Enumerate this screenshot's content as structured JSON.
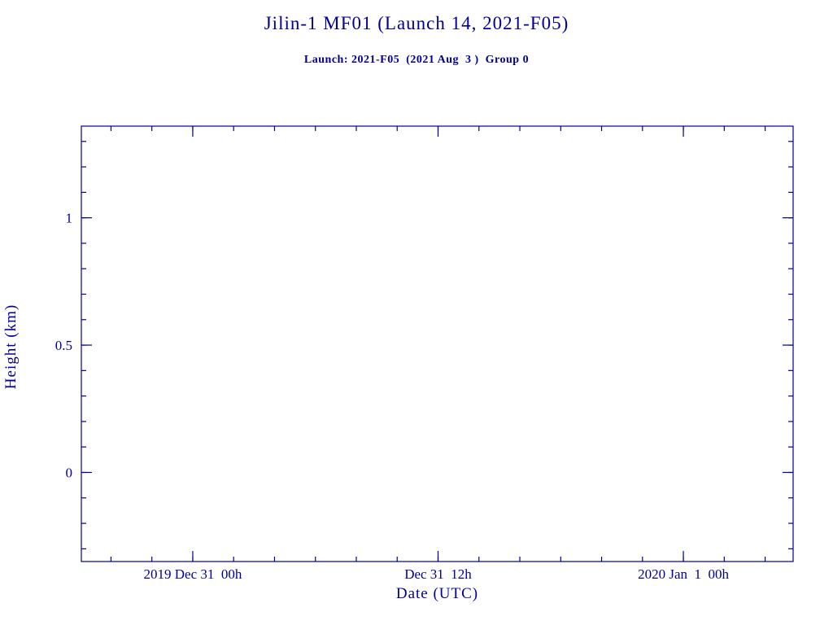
{
  "page": {
    "title": "Jilin-1 MF01 (Launch 14, 2021-F05)",
    "subtitle": "Launch: 2021-F05  (2021 Aug  3 )  Group 0"
  },
  "chart_data": {
    "type": "line",
    "title": "Jilin-1 MF01 (Launch 14, 2021-F05)",
    "subtitle": "Launch: 2021-F05  (2021 Aug  3 )  Group 0",
    "xlabel": "Date (UTC)",
    "ylabel": "Height (km)",
    "x_unit": "hours relative to 2019 Dec 31 00h UTC",
    "x_range": [
      -5.45,
      29.37
    ],
    "y_range": [
      -0.35,
      1.36
    ],
    "x_major_ticks": [
      {
        "value": 0,
        "label": "2019 Dec 31  00h"
      },
      {
        "value": 12,
        "label": "Dec 31  12h"
      },
      {
        "value": 24,
        "label": "2020 Jan  1  00h"
      }
    ],
    "x_minor_step": 2,
    "y_major_ticks": [
      {
        "value": 0,
        "label": "0"
      },
      {
        "value": 0.5,
        "label": "0.5"
      },
      {
        "value": 1,
        "label": "1"
      }
    ],
    "y_minor_step": 0.1,
    "series": [],
    "grid": false,
    "legend": false,
    "accent_color": "#000099"
  }
}
